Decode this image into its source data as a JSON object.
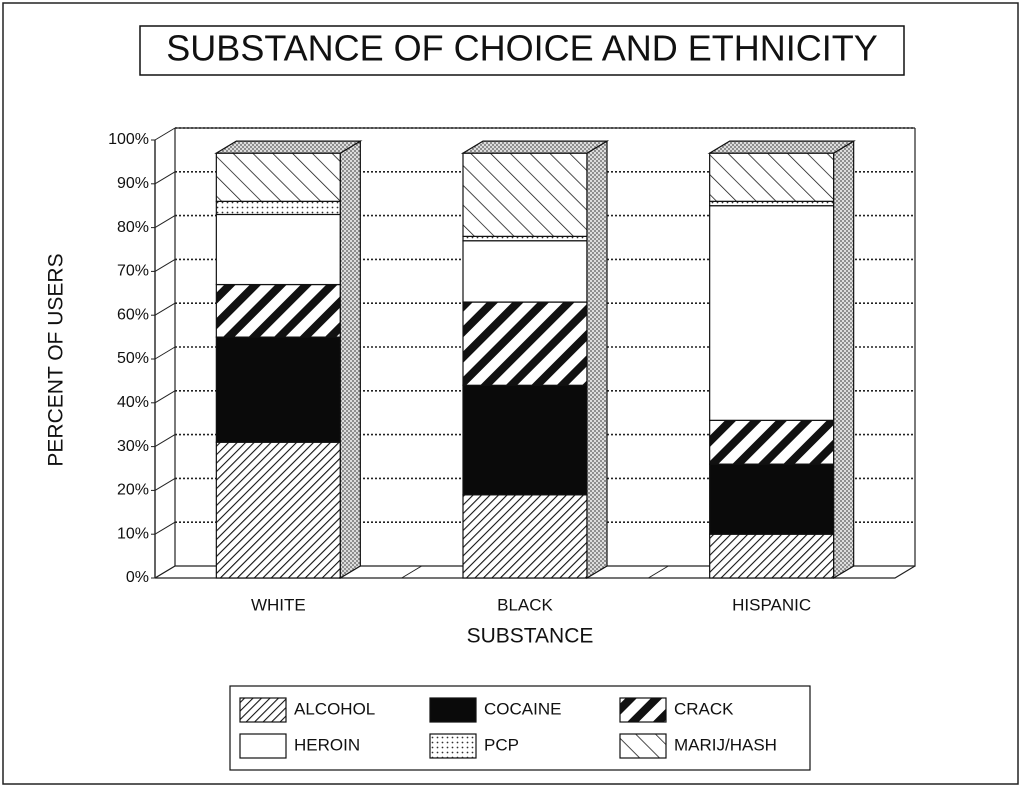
{
  "chart_data": {
    "type": "stacked-bar-3d",
    "title": "SUBSTANCE OF CHOICE AND ETHNICITY",
    "x_label": "SUBSTANCE",
    "y_label": "PERCENT OF USERS",
    "categories": [
      "WHITE",
      "BLACK",
      "HISPANIC"
    ],
    "series": [
      {
        "name": "ALCOHOL",
        "pattern": "fine-back-diagonal",
        "values": [
          31,
          19,
          10
        ]
      },
      {
        "name": "COCAINE",
        "pattern": "solid-black",
        "values": [
          24,
          25,
          16
        ]
      },
      {
        "name": "CRACK",
        "pattern": "bold-back-diagonal",
        "values": [
          12,
          19,
          10
        ]
      },
      {
        "name": "HEROIN",
        "pattern": "white",
        "values": [
          16,
          14,
          49
        ]
      },
      {
        "name": "PCP",
        "pattern": "dots",
        "values": [
          3,
          1,
          1
        ]
      },
      {
        "name": "MARIJ/HASH",
        "pattern": "forward-diagonal",
        "values": [
          11,
          19,
          11
        ]
      }
    ],
    "ylim": [
      0,
      100
    ],
    "yticks": [
      {
        "value": 0,
        "label": "0%"
      },
      {
        "value": 10,
        "label": "10%"
      },
      {
        "value": 20,
        "label": "20%"
      },
      {
        "value": 30,
        "label": "30%"
      },
      {
        "value": 40,
        "label": "40%"
      },
      {
        "value": 50,
        "label": "50%"
      },
      {
        "value": 60,
        "label": "60%"
      },
      {
        "value": 70,
        "label": "70%"
      },
      {
        "value": 80,
        "label": "80%"
      },
      {
        "value": 90,
        "label": "90%"
      },
      {
        "value": 100,
        "label": "100%"
      }
    ],
    "grid": true
  }
}
